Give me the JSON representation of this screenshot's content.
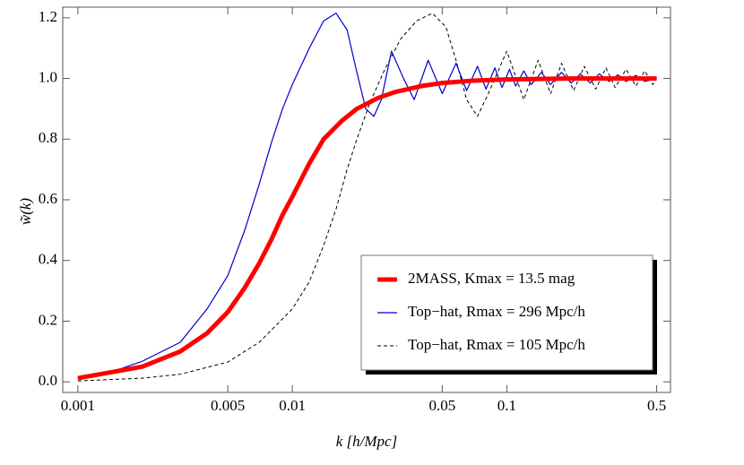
{
  "chart_data": {
    "type": "line",
    "xlabel": "k [h/Mpc]",
    "ylabel": "w̃(k)",
    "xscale": "log",
    "xlim": [
      0.00085,
      0.58
    ],
    "ylim": [
      -0.035,
      1.235
    ],
    "xticks": [
      0.001,
      0.005,
      0.01,
      0.05,
      0.1,
      0.5
    ],
    "yticks": [
      {
        "value": 0,
        "label": "0.0"
      },
      0.2,
      0.4,
      0.6,
      0.8,
      {
        "value": 1,
        "label": "1.0"
      },
      1.2
    ],
    "legend": "lower right",
    "series": [
      {
        "name": "2MASS, Kmax = 13.5 mag",
        "color": "#ff0000",
        "width": 5,
        "dash": "none",
        "x": [
          0.001,
          0.002,
          0.003,
          0.004,
          0.005,
          0.006,
          0.007,
          0.008,
          0.009,
          0.01,
          0.012,
          0.014,
          0.017,
          0.02,
          0.025,
          0.03,
          0.04,
          0.05,
          0.07,
          0.1,
          0.2,
          0.5
        ],
        "values": [
          0.012,
          0.05,
          0.1,
          0.16,
          0.23,
          0.31,
          0.39,
          0.47,
          0.55,
          0.61,
          0.72,
          0.8,
          0.86,
          0.9,
          0.935,
          0.955,
          0.975,
          0.985,
          0.993,
          0.997,
          1.0,
          1.0
        ]
      },
      {
        "name": "Top−hat, Rmax = 296 Mpc/h",
        "color": "#0000cc",
        "width": 1.2,
        "dash": "none",
        "x": [
          0.001,
          0.0015,
          0.002,
          0.003,
          0.004,
          0.005,
          0.006,
          0.007,
          0.008,
          0.009,
          0.01,
          0.012,
          0.014,
          0.016,
          0.018,
          0.02,
          0.022,
          0.024,
          0.026,
          0.029,
          0.033,
          0.037,
          0.043,
          0.05,
          0.058,
          0.065,
          0.073,
          0.08,
          0.088,
          0.095,
          0.103,
          0.11,
          0.12,
          0.13,
          0.145,
          0.16,
          0.18,
          0.2,
          0.22,
          0.245,
          0.27,
          0.3,
          0.33,
          0.36,
          0.4,
          0.44,
          0.5
        ],
        "values": [
          0.012,
          0.037,
          0.068,
          0.13,
          0.24,
          0.35,
          0.5,
          0.65,
          0.79,
          0.9,
          0.98,
          1.1,
          1.19,
          1.215,
          1.16,
          1.02,
          0.9,
          0.875,
          0.93,
          1.09,
          1.0,
          0.93,
          1.06,
          0.95,
          1.05,
          0.96,
          1.04,
          0.965,
          1.035,
          0.97,
          1.03,
          0.975,
          1.025,
          0.98,
          1.02,
          0.98,
          1.02,
          0.985,
          1.015,
          0.985,
          1.015,
          0.99,
          1.012,
          0.99,
          1.01,
          0.99,
          1.0
        ]
      },
      {
        "name": "Top−hat, Rmax = 105 Mpc/h",
        "color": "#000000",
        "width": 1,
        "dash": "4,3",
        "x": [
          0.001,
          0.002,
          0.003,
          0.005,
          0.007,
          0.01,
          0.012,
          0.014,
          0.016,
          0.018,
          0.02,
          0.023,
          0.027,
          0.032,
          0.038,
          0.045,
          0.052,
          0.058,
          0.065,
          0.073,
          0.082,
          0.1,
          0.12,
          0.14,
          0.16,
          0.18,
          0.205,
          0.23,
          0.26,
          0.29,
          0.32,
          0.36,
          0.4,
          0.44,
          0.48,
          0.5
        ],
        "values": [
          0.003,
          0.012,
          0.025,
          0.065,
          0.13,
          0.24,
          0.33,
          0.45,
          0.57,
          0.7,
          0.8,
          0.92,
          1.03,
          1.13,
          1.19,
          1.215,
          1.17,
          1.06,
          0.93,
          0.875,
          0.95,
          1.09,
          0.93,
          1.06,
          0.95,
          1.05,
          0.96,
          1.04,
          0.965,
          1.035,
          0.97,
          1.03,
          0.975,
          1.025,
          0.98,
          1.0
        ]
      }
    ]
  }
}
